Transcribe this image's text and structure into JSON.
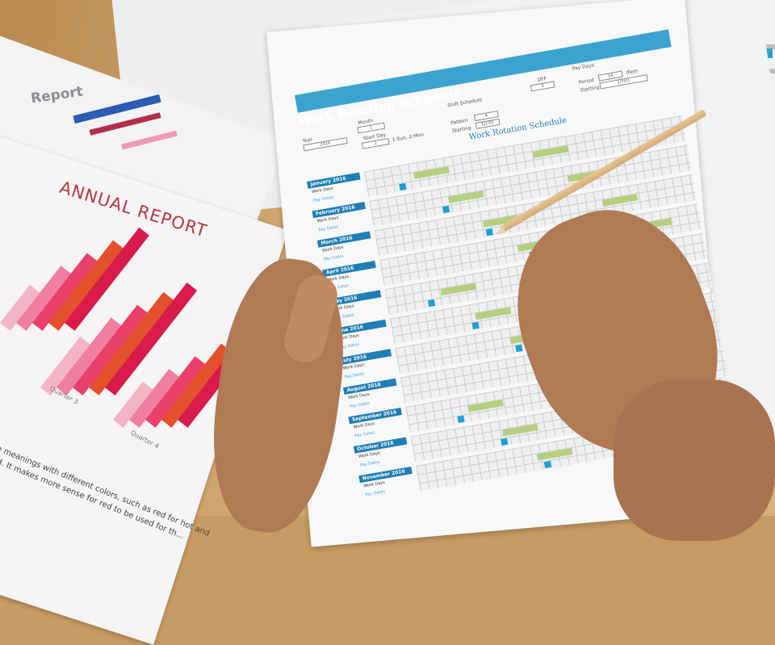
{
  "background_report": {
    "title": "Report"
  },
  "annual_report": {
    "title": "ANNUAL REPORT",
    "quarters": [
      "Quarter 3",
      "Quarter 4"
    ],
    "body_text": [
      "...e meanings with different colors, such as red for hot and",
      "...ed. It makes more sense for red to be used for th..."
    ],
    "colors": [
      "#f3b5c6",
      "#ef7fa0",
      "#e9406a",
      "#e4502c",
      "#d81b4a"
    ]
  },
  "schedule": {
    "title": "Work Rotation Schedule",
    "subtitle": "Work Rotation Schedule",
    "year_label": "Year",
    "year_value": "2016",
    "month_label": "Month",
    "month_value": "1",
    "start_day_label": "Start Day",
    "start_day_value": "1",
    "start_day_hint": "1:Sun, 2:Mon",
    "shift_schedule_label": "Shift Schedule",
    "off_label": "OFF",
    "off_value": "3",
    "pattern_label": "Pattern",
    "pattern_value": "4",
    "starting_label": "Starting",
    "starting_value": "1/1/01",
    "pay_days_label": "Pay Days",
    "period_label": "Period",
    "period_value": "14",
    "period_unit": "days",
    "pay_starting_value": "1/7/01",
    "work_days_label": "Work Days",
    "pay_dates_label": "Pay Dates",
    "months": [
      "January 2016",
      "February 2016",
      "March 2016",
      "April 2016",
      "May 2016",
      "June 2016",
      "July 2016",
      "August 2016",
      "September 2016",
      "October 2016",
      "November 2016"
    ],
    "accent_color": "#3aa3d0",
    "work_color": "#b5cf7e",
    "pay_color": "#1e9fd6"
  }
}
